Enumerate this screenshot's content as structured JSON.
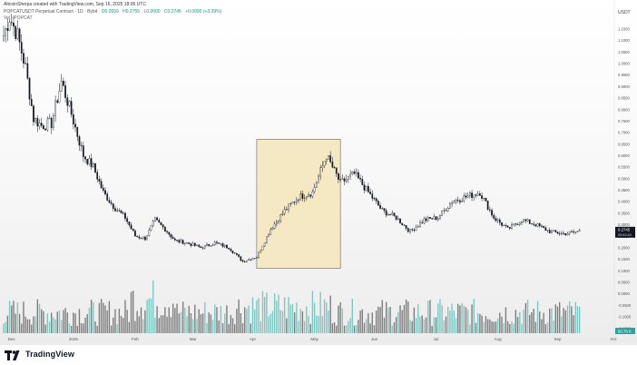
{
  "header": {
    "created_by": "AltcoinSherpa created with TradingView.com, Sep 16, 2025 18:06 UTC",
    "symbol_line": "POPCATUSDT Perpetual Contract · 1D · Bybit",
    "ohlc": [
      "O0.2659",
      "H0.2755",
      "L0.2600",
      "C0.2745",
      "+0.0090 (+3.39%)"
    ],
    "volume_line": "Vol · POPCAT"
  },
  "colors": {
    "candle": "#131722",
    "volume_up": "#7cc7c2",
    "volume_down": "#7b7b7b",
    "highlight_fill": "#f5e9c2",
    "highlight_stroke": "#5a5a5a",
    "price_badge": "#131722",
    "volume_badge": "#26a69a"
  },
  "footer": {
    "brand": "TradingView"
  },
  "chart_data": {
    "type": "candlestick",
    "currency": "USDT",
    "price_axis_ticks": [
      "1.1500",
      "1.0500",
      "0.9500",
      "0.8500",
      "0.7500",
      "0.6500",
      "0.5500",
      "0.4500",
      "0.3500",
      "0.2500",
      "0.1500",
      "0.0500",
      "-0.0500",
      "-0.1500"
    ],
    "price_axis_ticks_near_top": [
      "1.1000",
      "1.0000",
      "0.9000",
      "0.8000",
      "0.7000",
      "0.6000",
      "0.5000",
      "0.4000",
      "0.3000",
      "0.2000",
      "0.1000",
      "0.0000",
      "-0.1000"
    ],
    "x_ticks": [
      "Dec",
      "2025",
      "Feb",
      "Mar",
      "Apr",
      "May",
      "Jun",
      "Jul",
      "Aug",
      "Sep",
      "Oct"
    ],
    "last_price_label": "0.2745",
    "last_price_sub": "05:53:40",
    "volume_label": "60.78 K",
    "price_range": [
      -0.16,
      1.2
    ],
    "highlight": {
      "from": "Apr 7",
      "to": "May 19",
      "price_low": 0.11,
      "price_high": 0.67
    },
    "close_path": {
      "dates": [
        "Dec 1",
        "Dec 4",
        "Dec 8",
        "Dec 12",
        "Dec 16",
        "Dec 20",
        "Dec 25",
        "Dec 30",
        "Jan 4",
        "Jan 10",
        "Jan 15",
        "Jan 20",
        "Jan 25",
        "Jan 31",
        "Feb 5",
        "Feb 10",
        "Feb 15",
        "Feb 20",
        "Feb 25",
        "Mar 3",
        "Mar 10",
        "Mar 17",
        "Mar 24",
        "Mar 31",
        "Apr 7",
        "Apr 14",
        "Apr 21",
        "Apr 28",
        "May 5",
        "May 12",
        "May 19",
        "May 26",
        "Jun 2",
        "Jun 9",
        "Jun 16",
        "Jun 23",
        "Jun 30",
        "Jul 7",
        "Jul 14",
        "Jul 21",
        "Jul 28",
        "Aug 4",
        "Aug 11",
        "Aug 18",
        "Aug 25",
        "Sep 1",
        "Sep 8",
        "Sep 16"
      ],
      "close": [
        1.12,
        1.2,
        1.12,
        0.98,
        0.76,
        0.73,
        0.74,
        0.92,
        0.78,
        0.6,
        0.55,
        0.44,
        0.38,
        0.33,
        0.25,
        0.24,
        0.32,
        0.28,
        0.23,
        0.22,
        0.2,
        0.22,
        0.2,
        0.14,
        0.16,
        0.28,
        0.36,
        0.42,
        0.44,
        0.6,
        0.48,
        0.52,
        0.44,
        0.36,
        0.33,
        0.27,
        0.32,
        0.33,
        0.4,
        0.42,
        0.44,
        0.33,
        0.28,
        0.32,
        0.3,
        0.27,
        0.26,
        0.27
      ]
    },
    "volume_series": {
      "range": [
        0,
        100
      ]
    }
  }
}
